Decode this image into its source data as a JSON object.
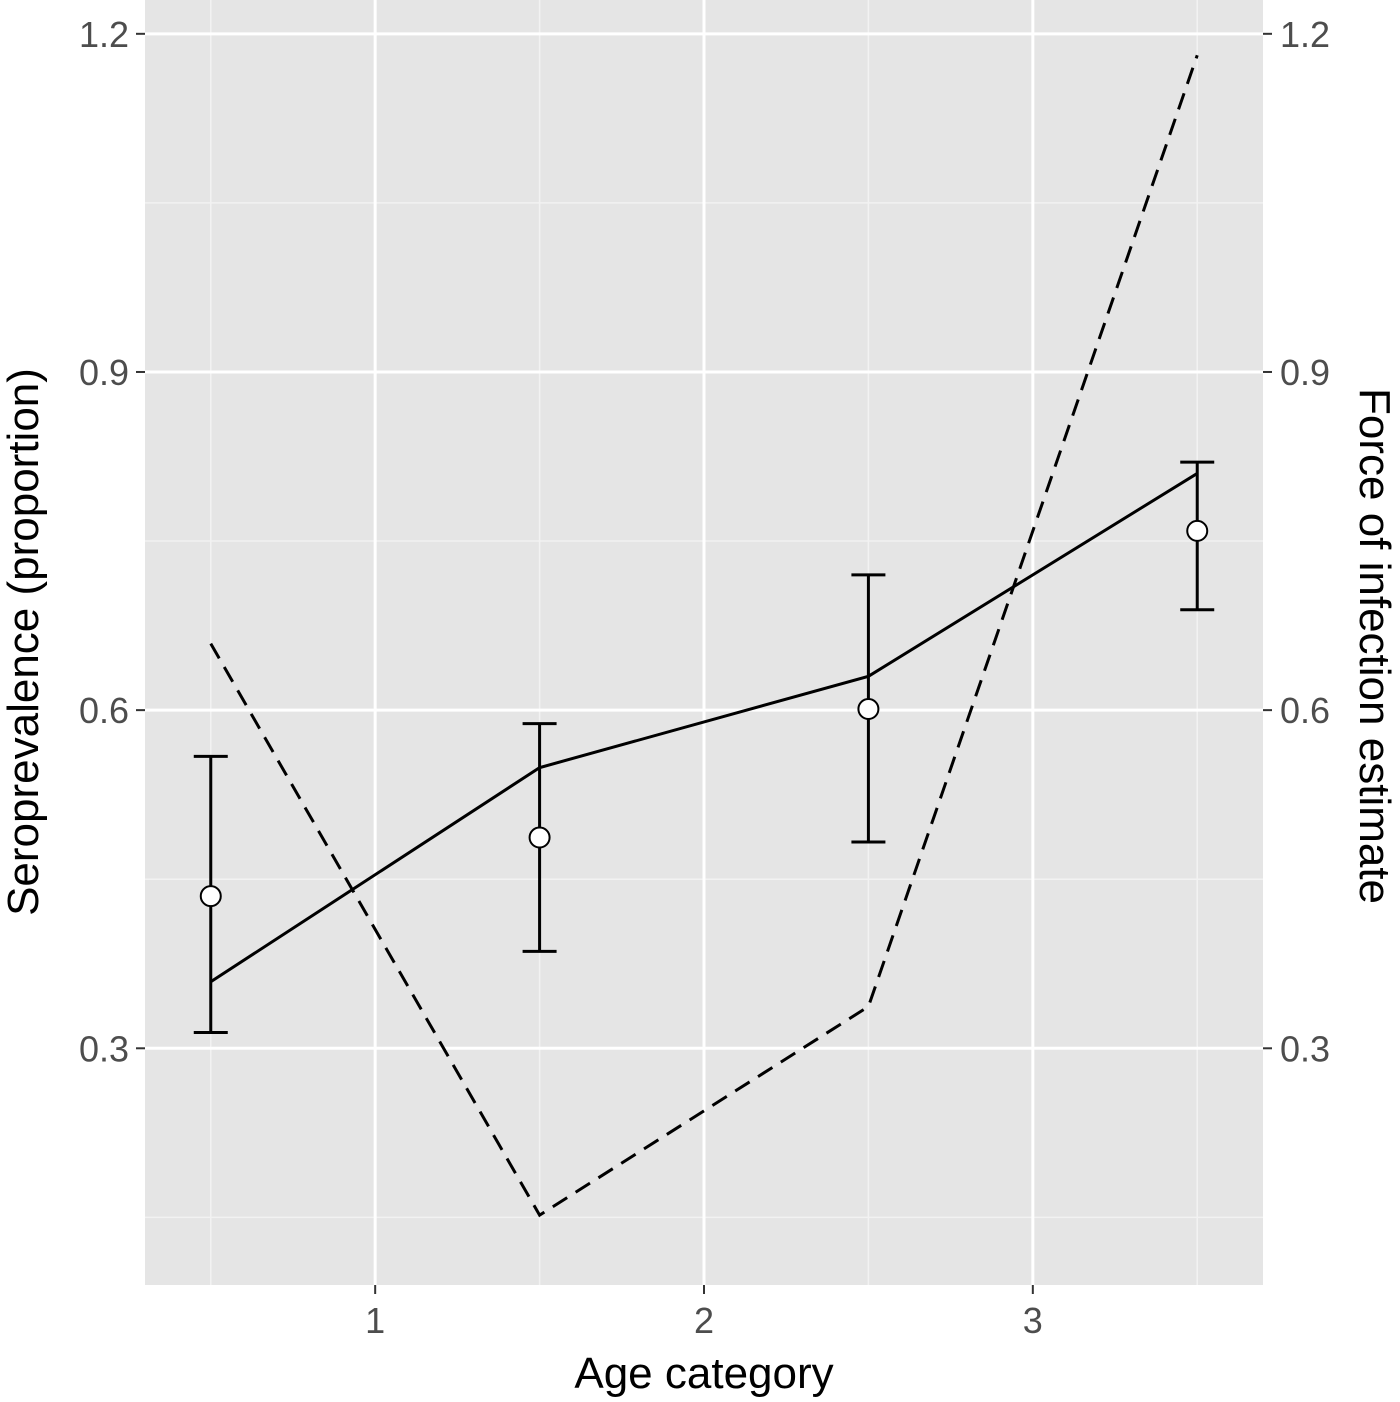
{
  "chart_data": {
    "type": "line",
    "xlabel": "Age category",
    "ylabel": "Seroprevalence (proportion)",
    "y2label": "Force of infection estimate",
    "xlim": [
      0.3,
      3.7
    ],
    "ylim": [
      0.09,
      1.23
    ],
    "xticks": [
      1,
      2,
      3
    ],
    "yticks": [
      0.3,
      0.6,
      0.9,
      1.2
    ],
    "ytick_labels": [
      "0.3",
      "0.6",
      "0.9",
      "1.2"
    ],
    "y2ticks": [
      0.3,
      0.6,
      0.9,
      1.2
    ],
    "y2tick_labels": [
      "0.3",
      "0.6",
      "0.9",
      "1.2"
    ],
    "grid": true,
    "legend": "none",
    "series": [
      {
        "style": "points-with-errorbars",
        "x": [
          0.5,
          1.5,
          2.5,
          3.5
        ],
        "y": [
          0.435,
          0.487,
          0.601,
          0.759
        ],
        "ymin": [
          0.314,
          0.386,
          0.483,
          0.689
        ],
        "ymax": [
          0.559,
          0.588,
          0.72,
          0.82
        ]
      },
      {
        "style": "solid-line",
        "x": [
          0.5,
          1.5,
          2.5,
          3.5
        ],
        "y": [
          0.359,
          0.549,
          0.63,
          0.81
        ]
      },
      {
        "style": "dashed-line",
        "x": [
          0.5,
          1.5,
          2.5,
          3.5
        ],
        "y": [
          0.659,
          0.152,
          0.337,
          1.181
        ]
      }
    ]
  }
}
